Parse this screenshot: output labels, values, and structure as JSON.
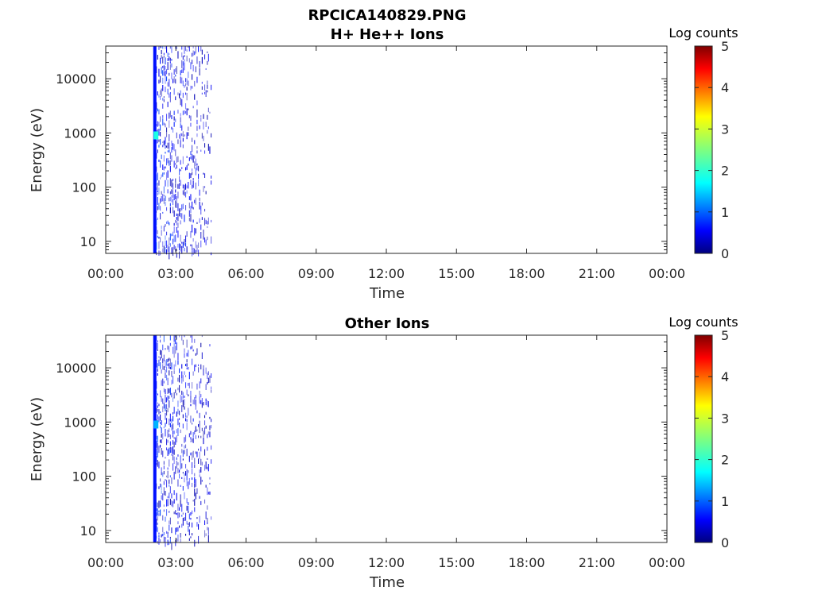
{
  "figure": {
    "title": "RPCICA140829.PNG"
  },
  "colormap": {
    "name": "jet",
    "stops": [
      "#00007f",
      "#0000ff",
      "#007fff",
      "#00ffff",
      "#7fff7f",
      "#ffff00",
      "#ff7f00",
      "#ff0000",
      "#7f0000"
    ]
  },
  "chart_data": [
    {
      "type": "heatmap",
      "title": "H+ He++ Ions",
      "xlabel": "Time",
      "ylabel": "Energy (eV)",
      "x_ticks": [
        "00:00",
        "03:00",
        "06:00",
        "09:00",
        "12:00",
        "15:00",
        "18:00",
        "21:00",
        "00:00"
      ],
      "y_ticks": [
        "10",
        "100",
        "1000",
        "10000"
      ],
      "y_scale": "log",
      "ylim": [
        6,
        40000
      ],
      "xlim_hours": [
        0,
        24
      ],
      "colorbar": {
        "label": "Log counts",
        "ticks": [
          "0",
          "1",
          "2",
          "3",
          "4",
          "5"
        ],
        "range": [
          0,
          5
        ]
      },
      "features": {
        "bar_hour": 2.1,
        "bar_value": 0.7,
        "burst_hours": [
          2.15,
          4.5
        ],
        "hotspot": {
          "hour": 2.15,
          "energy": 900,
          "value": 2.0
        }
      }
    },
    {
      "type": "heatmap",
      "title": "Other Ions",
      "xlabel": "Time",
      "ylabel": "Energy (eV)",
      "x_ticks": [
        "00:00",
        "03:00",
        "06:00",
        "09:00",
        "12:00",
        "15:00",
        "18:00",
        "21:00",
        "00:00"
      ],
      "y_ticks": [
        "10",
        "100",
        "1000",
        "10000"
      ],
      "y_scale": "log",
      "ylim": [
        6,
        40000
      ],
      "xlim_hours": [
        0,
        24
      ],
      "colorbar": {
        "label": "Log counts",
        "ticks": [
          "0",
          "1",
          "2",
          "3",
          "4",
          "5"
        ],
        "range": [
          0,
          5
        ]
      },
      "features": {
        "bar_hour": 2.1,
        "bar_value": 0.7,
        "burst_hours": [
          2.15,
          4.5
        ],
        "hotspot": {
          "hour": 2.15,
          "energy": 900,
          "value": 1.5
        }
      }
    }
  ]
}
